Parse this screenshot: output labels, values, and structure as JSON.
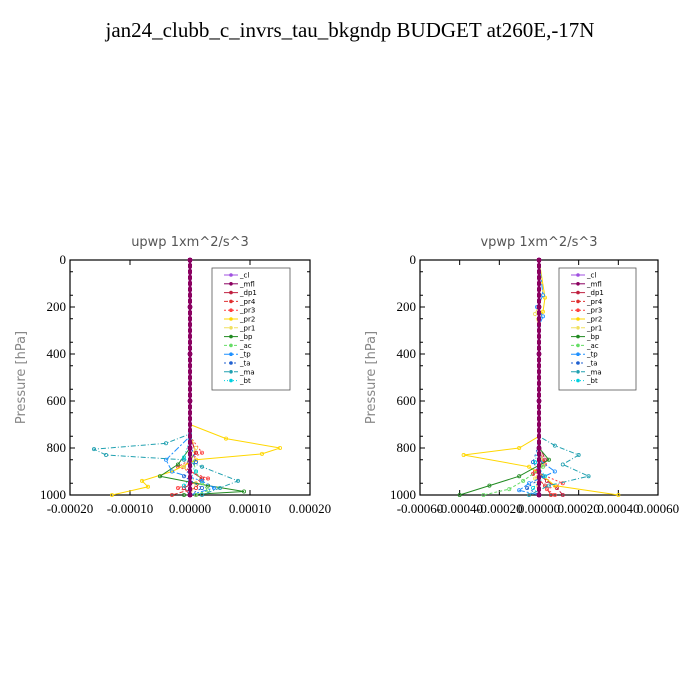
{
  "title": "jan24_clubb_c_invrs_tau_bkgndp  BUDGET at260E,-17N",
  "legend_entries": [
    {
      "label": "_cl",
      "color": "#a050e0"
    },
    {
      "label": "_mfl",
      "color": "#8b0060"
    },
    {
      "label": "_dp1",
      "color": "#c02040"
    },
    {
      "label": "_pr4",
      "color": "#e03030"
    },
    {
      "label": "_pr3",
      "color": "#ff4040"
    },
    {
      "label": "_pr2",
      "color": "#ffd700"
    },
    {
      "label": "_pr1",
      "color": "#f0e060"
    },
    {
      "label": "_bp",
      "color": "#228b22"
    },
    {
      "label": "_ac",
      "color": "#66dd66"
    },
    {
      "label": "_tp",
      "color": "#1e90ff"
    },
    {
      "label": "_ta",
      "color": "#2060d0"
    },
    {
      "label": "_ma",
      "color": "#20a0b0"
    },
    {
      "label": "_bt",
      "color": "#00d0e0"
    }
  ],
  "chart_data": [
    {
      "type": "line",
      "title": "upwp   1xm^2/s^3",
      "ylabel": "Pressure  [hPa]",
      "ylim": [
        1000,
        0
      ],
      "xlim": [
        -0.0002,
        0.0002
      ],
      "yticks": [
        "0",
        "200",
        "400",
        "600",
        "800",
        "1000"
      ],
      "xticks": [
        "-0.00020",
        "-0.00010",
        "0.00000",
        "0.00010",
        "0.00020"
      ],
      "legend": "top-right",
      "series": [
        {
          "name": "_cl",
          "x": [
            0,
            0,
            0,
            0,
            0,
            0
          ],
          "y": [
            0,
            200,
            400,
            600,
            800,
            1000
          ]
        },
        {
          "name": "_mfl",
          "x": [
            0,
            0,
            0,
            0,
            0,
            0
          ],
          "y": [
            0,
            200,
            400,
            600,
            800,
            1000
          ]
        },
        {
          "name": "_dp1",
          "x": [
            0,
            0,
            1e-05,
            -1e-05,
            2e-05,
            -1e-05,
            0
          ],
          "y": [
            0,
            750,
            820,
            880,
            930,
            970,
            1000
          ]
        },
        {
          "name": "_pr4",
          "x": [
            0,
            0,
            1e-05,
            -1e-05,
            2e-05,
            1e-05,
            -3e-05
          ],
          "y": [
            0,
            750,
            820,
            880,
            930,
            970,
            1000
          ]
        },
        {
          "name": "_pr3",
          "x": [
            0,
            0,
            2e-05,
            -2e-05,
            3e-05,
            -2e-05,
            1e-05
          ],
          "y": [
            0,
            750,
            820,
            880,
            930,
            970,
            1000
          ]
        },
        {
          "name": "_pr2",
          "x": [
            0,
            0,
            6e-05,
            0.00015,
            0.00012,
            1e-05,
            -3e-05,
            -8e-05,
            -7e-05,
            -0.00013
          ],
          "y": [
            0,
            700,
            760,
            800,
            825,
            850,
            900,
            940,
            965,
            1000
          ]
        },
        {
          "name": "_pr1",
          "x": [
            0,
            0,
            1e-05,
            -1e-05,
            1e-05,
            0
          ],
          "y": [
            0,
            750,
            800,
            880,
            950,
            1000
          ]
        },
        {
          "name": "_bp",
          "x": [
            0,
            0,
            -2e-05,
            -5e-05,
            3e-05,
            9e-05,
            -1e-05
          ],
          "y": [
            0,
            800,
            870,
            920,
            960,
            985,
            1000
          ]
        },
        {
          "name": "_ac",
          "x": [
            0,
            0,
            1e-05,
            2e-05,
            3e-05,
            1e-05
          ],
          "y": [
            0,
            800,
            900,
            950,
            980,
            1000
          ]
        },
        {
          "name": "_tp",
          "x": [
            0,
            0,
            -4e-05,
            -3e-05,
            2e-05,
            4e-05,
            0
          ],
          "y": [
            0,
            750,
            850,
            900,
            940,
            970,
            1000
          ]
        },
        {
          "name": "_ta",
          "x": [
            0,
            0,
            1e-05,
            -1e-05,
            2e-05,
            0
          ],
          "y": [
            0,
            780,
            860,
            920,
            970,
            1000
          ]
        },
        {
          "name": "_ma",
          "x": [
            0,
            0,
            -4e-05,
            -0.00016,
            -0.00014,
            -1e-05,
            2e-05,
            8e-05,
            5e-05,
            2e-05
          ],
          "y": [
            0,
            740,
            780,
            805,
            830,
            850,
            880,
            940,
            970,
            1000
          ]
        },
        {
          "name": "_bt",
          "x": [
            0,
            0,
            -1e-05,
            1e-05,
            -1e-05,
            0
          ],
          "y": [
            0,
            760,
            840,
            900,
            960,
            1000
          ]
        }
      ]
    },
    {
      "type": "line",
      "title": "vpwp   1xm^2/s^3",
      "ylabel": "Pressure  [hPa]",
      "ylim": [
        1000,
        0
      ],
      "xlim": [
        -0.0006,
        0.0006
      ],
      "yticks": [
        "0",
        "200",
        "400",
        "600",
        "800",
        "1000"
      ],
      "xticks": [
        "-0.00060",
        "-0.00040",
        "-0.00020",
        "0.00000",
        "0.00020",
        "0.00040",
        "0.00060"
      ],
      "legend": "top-right",
      "series": [
        {
          "name": "_cl",
          "x": [
            0,
            0,
            0,
            0,
            0,
            0
          ],
          "y": [
            0,
            200,
            400,
            600,
            800,
            1000
          ]
        },
        {
          "name": "_mfl",
          "x": [
            0,
            0,
            0,
            0,
            0,
            0
          ],
          "y": [
            0,
            200,
            400,
            600,
            800,
            1000
          ]
        },
        {
          "name": "_dp1",
          "x": [
            0,
            0,
            3e-05,
            -2e-05,
            4e-05,
            9e-05,
            0.00012
          ],
          "y": [
            0,
            780,
            850,
            900,
            940,
            970,
            1000
          ]
        },
        {
          "name": "_pr4",
          "x": [
            0,
            0,
            2e-05,
            -3e-05,
            3e-05,
            6e-05
          ],
          "y": [
            0,
            800,
            860,
            910,
            960,
            1000
          ]
        },
        {
          "name": "_pr3",
          "x": [
            0,
            0,
            3e-05,
            -2e-05,
            0.00012,
            4e-05,
            8e-05
          ],
          "y": [
            0,
            800,
            870,
            900,
            950,
            975,
            1000
          ]
        },
        {
          "name": "_pr2",
          "x": [
            0,
            3e-05,
            2e-05,
            0,
            0,
            -0.0001,
            -0.00038,
            -5e-05,
            2e-05,
            8e-05,
            0.0004
          ],
          "y": [
            0,
            160,
            220,
            260,
            750,
            800,
            830,
            880,
            920,
            960,
            1000
          ]
        },
        {
          "name": "_pr1",
          "x": [
            0,
            2e-05,
            -2e-05,
            0,
            0,
            2e-05,
            -2e-05,
            0
          ],
          "y": [
            0,
            150,
            230,
            280,
            800,
            870,
            930,
            1000
          ]
        },
        {
          "name": "_bp",
          "x": [
            0,
            0,
            5e-05,
            -0.0001,
            -0.00025,
            -0.0004
          ],
          "y": [
            0,
            800,
            850,
            920,
            960,
            1000
          ]
        },
        {
          "name": "_ac",
          "x": [
            0,
            0,
            2e-05,
            -8e-05,
            -0.00015,
            -0.00028
          ],
          "y": [
            0,
            800,
            880,
            940,
            975,
            1000
          ]
        },
        {
          "name": "_tp",
          "x": [
            0,
            2e-05,
            -1e-05,
            2e-05,
            0,
            0,
            8e-05,
            -5e-05,
            -0.0001,
            0
          ],
          "y": [
            0,
            150,
            200,
            240,
            280,
            850,
            900,
            950,
            980,
            1000
          ]
        },
        {
          "name": "_ta",
          "x": [
            0,
            0,
            -3e-05,
            2e-05,
            -6e-05,
            0
          ],
          "y": [
            0,
            780,
            860,
            920,
            970,
            1000
          ]
        },
        {
          "name": "_ma",
          "x": [
            0,
            0,
            8e-05,
            0.0002,
            0.00012,
            0.00025,
            5e-05,
            -5e-05
          ],
          "y": [
            0,
            750,
            790,
            830,
            870,
            920,
            960,
            1000
          ]
        },
        {
          "name": "_bt",
          "x": [
            0,
            0,
            -2e-05,
            3e-05,
            -3e-05,
            0
          ],
          "y": [
            0,
            780,
            860,
            920,
            970,
            1000
          ]
        }
      ]
    }
  ]
}
